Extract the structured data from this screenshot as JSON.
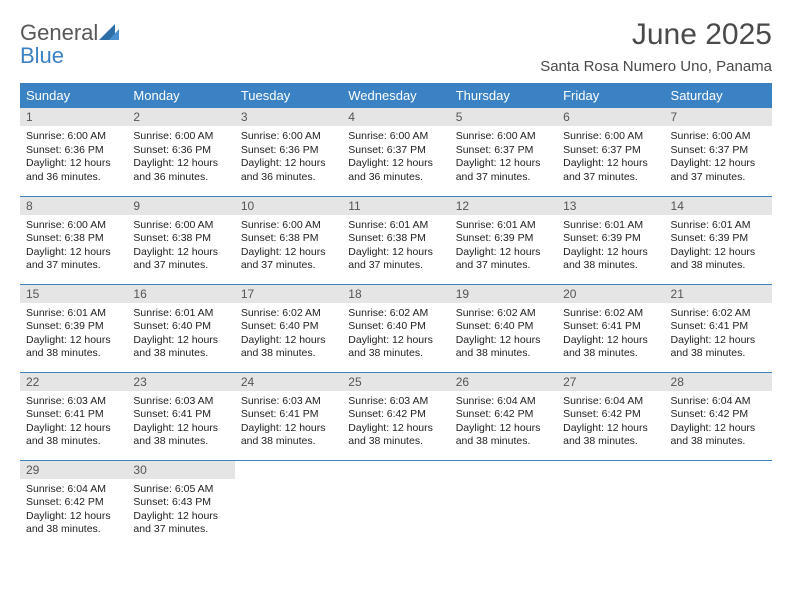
{
  "logo": {
    "word1": "General",
    "word2": "Blue",
    "word1_color": "#585858",
    "word2_color": "#3b82c4",
    "mark_color": "#2f6fa8"
  },
  "header": {
    "title": "June 2025",
    "subtitle": "Santa Rosa Numero Uno, Panama"
  },
  "colors": {
    "header_bg": "#3b82c4",
    "header_text": "#ffffff",
    "daynum_bg": "#e5e5e5",
    "daynum_text": "#555555",
    "row_border": "#3b82c4",
    "body_text": "#222222"
  },
  "weekdays": [
    "Sunday",
    "Monday",
    "Tuesday",
    "Wednesday",
    "Thursday",
    "Friday",
    "Saturday"
  ],
  "days": [
    {
      "n": "1",
      "sunrise": "6:00 AM",
      "sunset": "6:36 PM",
      "daylight": "12 hours and 36 minutes."
    },
    {
      "n": "2",
      "sunrise": "6:00 AM",
      "sunset": "6:36 PM",
      "daylight": "12 hours and 36 minutes."
    },
    {
      "n": "3",
      "sunrise": "6:00 AM",
      "sunset": "6:36 PM",
      "daylight": "12 hours and 36 minutes."
    },
    {
      "n": "4",
      "sunrise": "6:00 AM",
      "sunset": "6:37 PM",
      "daylight": "12 hours and 36 minutes."
    },
    {
      "n": "5",
      "sunrise": "6:00 AM",
      "sunset": "6:37 PM",
      "daylight": "12 hours and 37 minutes."
    },
    {
      "n": "6",
      "sunrise": "6:00 AM",
      "sunset": "6:37 PM",
      "daylight": "12 hours and 37 minutes."
    },
    {
      "n": "7",
      "sunrise": "6:00 AM",
      "sunset": "6:37 PM",
      "daylight": "12 hours and 37 minutes."
    },
    {
      "n": "8",
      "sunrise": "6:00 AM",
      "sunset": "6:38 PM",
      "daylight": "12 hours and 37 minutes."
    },
    {
      "n": "9",
      "sunrise": "6:00 AM",
      "sunset": "6:38 PM",
      "daylight": "12 hours and 37 minutes."
    },
    {
      "n": "10",
      "sunrise": "6:00 AM",
      "sunset": "6:38 PM",
      "daylight": "12 hours and 37 minutes."
    },
    {
      "n": "11",
      "sunrise": "6:01 AM",
      "sunset": "6:38 PM",
      "daylight": "12 hours and 37 minutes."
    },
    {
      "n": "12",
      "sunrise": "6:01 AM",
      "sunset": "6:39 PM",
      "daylight": "12 hours and 37 minutes."
    },
    {
      "n": "13",
      "sunrise": "6:01 AM",
      "sunset": "6:39 PM",
      "daylight": "12 hours and 38 minutes."
    },
    {
      "n": "14",
      "sunrise": "6:01 AM",
      "sunset": "6:39 PM",
      "daylight": "12 hours and 38 minutes."
    },
    {
      "n": "15",
      "sunrise": "6:01 AM",
      "sunset": "6:39 PM",
      "daylight": "12 hours and 38 minutes."
    },
    {
      "n": "16",
      "sunrise": "6:01 AM",
      "sunset": "6:40 PM",
      "daylight": "12 hours and 38 minutes."
    },
    {
      "n": "17",
      "sunrise": "6:02 AM",
      "sunset": "6:40 PM",
      "daylight": "12 hours and 38 minutes."
    },
    {
      "n": "18",
      "sunrise": "6:02 AM",
      "sunset": "6:40 PM",
      "daylight": "12 hours and 38 minutes."
    },
    {
      "n": "19",
      "sunrise": "6:02 AM",
      "sunset": "6:40 PM",
      "daylight": "12 hours and 38 minutes."
    },
    {
      "n": "20",
      "sunrise": "6:02 AM",
      "sunset": "6:41 PM",
      "daylight": "12 hours and 38 minutes."
    },
    {
      "n": "21",
      "sunrise": "6:02 AM",
      "sunset": "6:41 PM",
      "daylight": "12 hours and 38 minutes."
    },
    {
      "n": "22",
      "sunrise": "6:03 AM",
      "sunset": "6:41 PM",
      "daylight": "12 hours and 38 minutes."
    },
    {
      "n": "23",
      "sunrise": "6:03 AM",
      "sunset": "6:41 PM",
      "daylight": "12 hours and 38 minutes."
    },
    {
      "n": "24",
      "sunrise": "6:03 AM",
      "sunset": "6:41 PM",
      "daylight": "12 hours and 38 minutes."
    },
    {
      "n": "25",
      "sunrise": "6:03 AM",
      "sunset": "6:42 PM",
      "daylight": "12 hours and 38 minutes."
    },
    {
      "n": "26",
      "sunrise": "6:04 AM",
      "sunset": "6:42 PM",
      "daylight": "12 hours and 38 minutes."
    },
    {
      "n": "27",
      "sunrise": "6:04 AM",
      "sunset": "6:42 PM",
      "daylight": "12 hours and 38 minutes."
    },
    {
      "n": "28",
      "sunrise": "6:04 AM",
      "sunset": "6:42 PM",
      "daylight": "12 hours and 38 minutes."
    },
    {
      "n": "29",
      "sunrise": "6:04 AM",
      "sunset": "6:42 PM",
      "daylight": "12 hours and 38 minutes."
    },
    {
      "n": "30",
      "sunrise": "6:05 AM",
      "sunset": "6:43 PM",
      "daylight": "12 hours and 37 minutes."
    }
  ],
  "labels": {
    "sunrise": "Sunrise:",
    "sunset": "Sunset:",
    "daylight": "Daylight:"
  }
}
